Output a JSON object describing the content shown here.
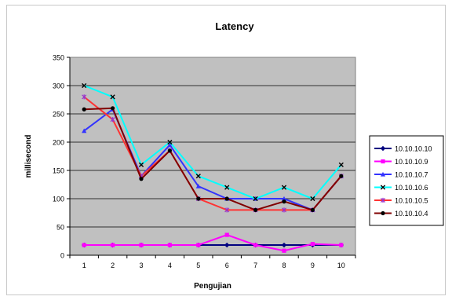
{
  "chart_data": {
    "type": "line",
    "title": "Latency",
    "xlabel": "Pengujian",
    "ylabel": "millisecond",
    "x": [
      1,
      2,
      3,
      4,
      5,
      6,
      7,
      8,
      9,
      10
    ],
    "ylim": [
      0,
      350
    ],
    "yticks": [
      0,
      50,
      100,
      150,
      200,
      250,
      300,
      350
    ],
    "grid": true,
    "plot_background": "#c0c0c0",
    "legend_position": "right",
    "series": [
      {
        "name": "10.10.10.10",
        "color": "#000080",
        "marker": "diamond",
        "values": [
          18,
          18,
          18,
          18,
          18,
          18,
          18,
          18,
          18,
          18
        ]
      },
      {
        "name": "10.10.10.9",
        "color": "#ff00ff",
        "marker": "square",
        "values": [
          18,
          18,
          18,
          18,
          18,
          36,
          18,
          8,
          20,
          18
        ]
      },
      {
        "name": "10.10.10.7",
        "color": "#3333ff",
        "marker": "triangle",
        "values": [
          220,
          258,
          140,
          195,
          122,
          100,
          100,
          100,
          80,
          140
        ]
      },
      {
        "name": "10.10.10.6",
        "color": "#00ffff",
        "marker": "x",
        "values": [
          300,
          280,
          160,
          200,
          140,
          120,
          100,
          120,
          100,
          160
        ]
      },
      {
        "name": "10.10.10.5",
        "color": "#ff3333",
        "marker": "star",
        "values": [
          280,
          240,
          140,
          185,
          100,
          80,
          80,
          80,
          80,
          140
        ]
      },
      {
        "name": "10.10.10.4",
        "color": "#800000",
        "marker": "circle",
        "values": [
          258,
          260,
          135,
          185,
          100,
          100,
          80,
          95,
          80,
          140
        ]
      }
    ]
  }
}
